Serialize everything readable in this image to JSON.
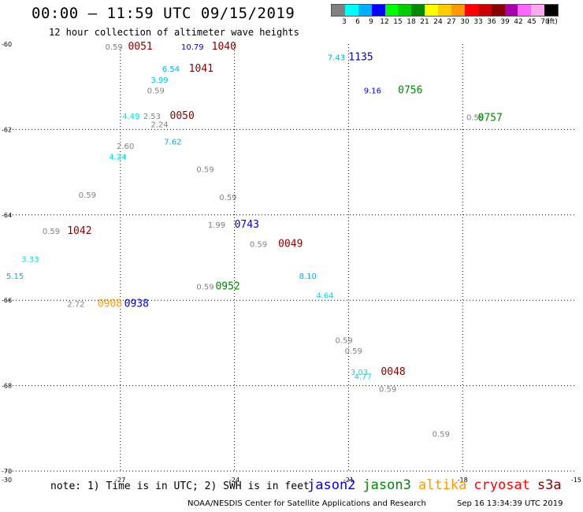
{
  "header": {
    "title": "00:00 – 11:59 UTC 09/15/2019",
    "subtitle": "12 hour collection of altimeter wave heights"
  },
  "legend": {
    "colors": [
      "#808080",
      "#00ffff",
      "#00b0ff",
      "#0000ff",
      "#00ff00",
      "#00cc00",
      "#008800",
      "#ffff00",
      "#ffcc00",
      "#ff9900",
      "#ff0000",
      "#cc0000",
      "#880000",
      "#aa00aa",
      "#ff66ff",
      "#ffaaee",
      "#000000"
    ],
    "labels": [
      "3",
      "6",
      "9",
      "12",
      "15",
      "18",
      "21",
      "24",
      "27",
      "30",
      "33",
      "36",
      "39",
      "42",
      "45",
      "70",
      "(ft)"
    ]
  },
  "map": {
    "lon_range": [
      -30,
      -15
    ],
    "lat_range": [
      -70,
      -60
    ],
    "x_ticks": [
      "-27",
      "-24",
      "-21",
      "-18"
    ],
    "x_tick_values": [
      -27,
      -24,
      -21,
      -18
    ],
    "y_ticks": [
      "-60",
      "-62",
      "-64",
      "-66",
      "-68",
      "-70"
    ],
    "y_tick_values": [
      -60,
      -62,
      -64,
      -66,
      -68,
      -70
    ],
    "corner_labels": {
      "left": "-30",
      "right": "-15"
    },
    "wave_heights": [
      {
        "text": "0.59",
        "lon": -27.4,
        "lat": -60.13,
        "color": "#808080"
      },
      {
        "text": "10.79",
        "lon": -25.4,
        "lat": -60.13,
        "color": "#0000cc"
      },
      {
        "text": "7.43",
        "lon": -21.55,
        "lat": -60.38,
        "color": "#00aaee"
      },
      {
        "text": "6.54",
        "lon": -25.9,
        "lat": -60.65,
        "color": "#00aaee"
      },
      {
        "text": "3.99",
        "lon": -26.2,
        "lat": -60.9,
        "color": "#00cccc"
      },
      {
        "text": "0.59",
        "lon": -26.3,
        "lat": -61.15,
        "color": "#808080"
      },
      {
        "text": "9.16",
        "lon": -20.6,
        "lat": -61.15,
        "color": "#0000cc"
      },
      {
        "text": "4.49",
        "lon": -26.95,
        "lat": -61.75,
        "color": "#00dddd"
      },
      {
        "text": "2.53",
        "lon": -26.4,
        "lat": -61.75,
        "color": "#808080"
      },
      {
        "text": "2.24",
        "lon": -26.2,
        "lat": -61.95,
        "color": "#808080"
      },
      {
        "text": "0.59",
        "lon": -17.9,
        "lat": -61.78,
        "color": "#808080"
      },
      {
        "text": "7.62",
        "lon": -25.85,
        "lat": -62.35,
        "color": "#00aaee"
      },
      {
        "text": "2.60",
        "lon": -27.1,
        "lat": -62.45,
        "color": "#808080"
      },
      {
        "text": "4.24",
        "lon": -27.3,
        "lat": -62.7,
        "color": "#00dddd"
      },
      {
        "text": "0.59",
        "lon": -25.0,
        "lat": -63.0,
        "color": "#808080"
      },
      {
        "text": "0.59",
        "lon": -28.1,
        "lat": -63.6,
        "color": "#808080"
      },
      {
        "text": "0.59",
        "lon": -24.4,
        "lat": -63.65,
        "color": "#808080"
      },
      {
        "text": "1.99",
        "lon": -24.7,
        "lat": -64.3,
        "color": "#808080"
      },
      {
        "text": "0.59",
        "lon": -29.05,
        "lat": -64.45,
        "color": "#808080"
      },
      {
        "text": "0.59",
        "lon": -23.6,
        "lat": -64.75,
        "color": "#808080"
      },
      {
        "text": "3.33",
        "lon": -29.6,
        "lat": -65.1,
        "color": "#00dddd"
      },
      {
        "text": "5.15",
        "lon": -30.0,
        "lat": -65.5,
        "color": "#00aaee"
      },
      {
        "text": "8.10",
        "lon": -22.3,
        "lat": -65.5,
        "color": "#00aaee"
      },
      {
        "text": "0.59",
        "lon": -25.0,
        "lat": -65.75,
        "color": "#808080"
      },
      {
        "text": "4.64",
        "lon": -21.85,
        "lat": -65.95,
        "color": "#00dddd"
      },
      {
        "text": "2.72",
        "lon": -28.4,
        "lat": -66.15,
        "color": "#808080"
      },
      {
        "text": "0.59",
        "lon": -21.35,
        "lat": -67.0,
        "color": "#808080"
      },
      {
        "text": "0.59",
        "lon": -21.1,
        "lat": -67.25,
        "color": "#808080"
      },
      {
        "text": "3.03",
        "lon": -20.95,
        "lat": -67.75,
        "color": "#00dddd"
      },
      {
        "text": "4.77",
        "lon": -20.85,
        "lat": -67.85,
        "color": "#00dddd"
      },
      {
        "text": "0.59",
        "lon": -20.2,
        "lat": -68.15,
        "color": "#808080"
      },
      {
        "text": "0.59",
        "lon": -18.8,
        "lat": -69.2,
        "color": "#808080"
      }
    ],
    "pass_times": [
      {
        "text": "0051",
        "lon": -26.8,
        "lat": -60.13,
        "color": "#880000"
      },
      {
        "text": "1040",
        "lon": -24.6,
        "lat": -60.13,
        "color": "#880000"
      },
      {
        "text": "1135",
        "lon": -21.0,
        "lat": -60.38,
        "color": "#0000cc"
      },
      {
        "text": "1041",
        "lon": -25.2,
        "lat": -60.65,
        "color": "#880000"
      },
      {
        "text": "0756",
        "lon": -19.7,
        "lat": -61.15,
        "color": "#008800"
      },
      {
        "text": "0050",
        "lon": -25.7,
        "lat": -61.75,
        "color": "#880000"
      },
      {
        "text": "0757",
        "lon": -17.6,
        "lat": -61.8,
        "color": "#008800"
      },
      {
        "text": "0743",
        "lon": -24.0,
        "lat": -64.3,
        "color": "#0000cc"
      },
      {
        "text": "1042",
        "lon": -28.4,
        "lat": -64.45,
        "color": "#880000"
      },
      {
        "text": "0049",
        "lon": -22.85,
        "lat": -64.75,
        "color": "#880000"
      },
      {
        "text": "0952",
        "lon": -24.5,
        "lat": -65.75,
        "color": "#008800"
      },
      {
        "text": "0938",
        "lon": -26.9,
        "lat": -66.15,
        "color": "#0000cc"
      },
      {
        "text": "0908",
        "lon": -27.6,
        "lat": -66.15,
        "color": "#ff9900"
      },
      {
        "text": "0048",
        "lon": -20.15,
        "lat": -67.75,
        "color": "#880000"
      }
    ]
  },
  "footer": {
    "note": "note: 1) Time is in UTC; 2) SWH is in feet",
    "satellites": [
      {
        "name": "jason2",
        "color": "#0000ee"
      },
      {
        "name": "jason3",
        "color": "#008800"
      },
      {
        "name": "altika",
        "color": "#ff9900"
      },
      {
        "name": "cryosat",
        "color": "#ff0000"
      },
      {
        "name": "s3a",
        "color": "#880000"
      }
    ],
    "credit": "NOAA/NESDIS Center for Satellite Applications and Research",
    "timestamp": "Sep 16 13:34:39 UTC 2019"
  }
}
